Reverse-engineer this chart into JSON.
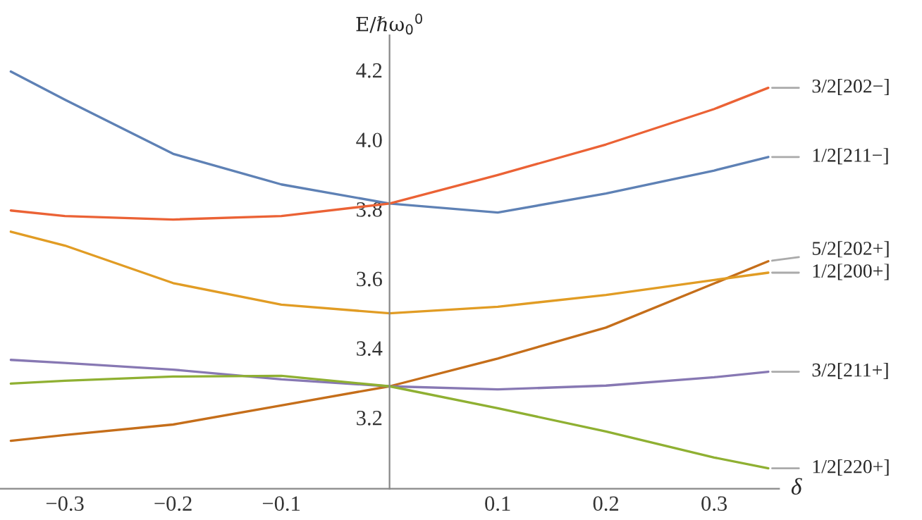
{
  "chart_data": {
    "type": "line",
    "xlabel": "δ",
    "ylabel": "E/ℏω$_{0}$$^{0}$",
    "x": [
      -0.35,
      -0.3,
      -0.2,
      -0.1,
      0,
      0.1,
      0.2,
      0.3,
      0.35
    ],
    "series": [
      {
        "name": "1/2[211−]",
        "color": "#5e81b5",
        "values": [
          4.196,
          4.115,
          3.959,
          3.871,
          3.816,
          3.79,
          3.845,
          3.911,
          3.95
        ]
      },
      {
        "name": "3/2[202−]",
        "color": "#eb6235",
        "values": [
          3.796,
          3.78,
          3.77,
          3.78,
          3.816,
          3.898,
          3.986,
          4.088,
          4.149
        ]
      },
      {
        "name": "5/2[202+]",
        "color": "#c56e1a",
        "values": [
          3.133,
          3.15,
          3.18,
          3.235,
          3.29,
          3.37,
          3.459,
          3.586,
          3.65
        ]
      },
      {
        "name": "1/2[200+]",
        "color": "#e19c24",
        "values": [
          3.735,
          3.695,
          3.587,
          3.525,
          3.5,
          3.519,
          3.553,
          3.596,
          3.617
        ]
      },
      {
        "name": "3/2[211+]",
        "color": "#8778b3",
        "values": [
          3.366,
          3.357,
          3.338,
          3.31,
          3.29,
          3.281,
          3.292,
          3.316,
          3.332
        ]
      },
      {
        "name": "1/2[220+]",
        "color": "#8fb032",
        "values": [
          3.298,
          3.306,
          3.318,
          3.32,
          3.29,
          3.227,
          3.16,
          3.085,
          3.054
        ]
      }
    ],
    "xlim": [
      -0.36,
      0.36
    ],
    "ylim": [
      2.995,
      4.3
    ],
    "xticks": [
      {
        "value": -0.3,
        "label": "−0.3"
      },
      {
        "value": -0.2,
        "label": "−0.2"
      },
      {
        "value": -0.1,
        "label": "−0.1"
      },
      0.1,
      0.2,
      0.3
    ],
    "yticks": [
      3.2,
      3.4,
      3.6,
      3.8,
      {
        "value": 4.0,
        "label": "4.0"
      },
      4.2
    ],
    "grid": false,
    "legend": false,
    "line_style": "solid",
    "marker": "none"
  }
}
